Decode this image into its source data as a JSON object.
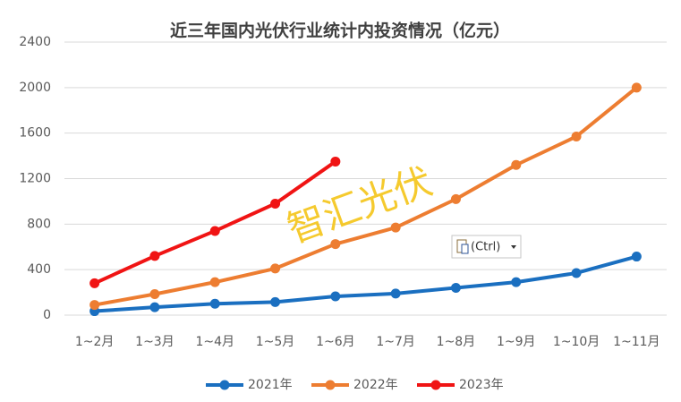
{
  "chart_data": {
    "type": "line",
    "title": "近三年国内光伏行业统计内投资情况（亿元）",
    "categories": [
      "1~2月",
      "1~3月",
      "1~4月",
      "1~5月",
      "1~6月",
      "1~7月",
      "1~8月",
      "1~9月",
      "1~10月",
      "1~11月"
    ],
    "series": [
      {
        "name": "2021年",
        "color": "#1a6fc0",
        "values": [
          35,
          70,
          100,
          115,
          165,
          190,
          240,
          290,
          370,
          515
        ]
      },
      {
        "name": "2022年",
        "color": "#ed7d31",
        "values": [
          90,
          185,
          290,
          410,
          625,
          770,
          1020,
          1320,
          1570,
          2000
        ]
      },
      {
        "name": "2023年",
        "color": "#f01414",
        "values": [
          280,
          520,
          740,
          980,
          1350,
          null,
          null,
          null,
          null,
          null
        ]
      }
    ],
    "ylim": [
      0,
      2400
    ],
    "yticks": [
      0,
      400,
      800,
      1200,
      1600,
      2000,
      2400
    ],
    "grid": true,
    "legend": "bottom",
    "watermark": "智汇光伏",
    "paste_label": "(Ctrl)"
  }
}
